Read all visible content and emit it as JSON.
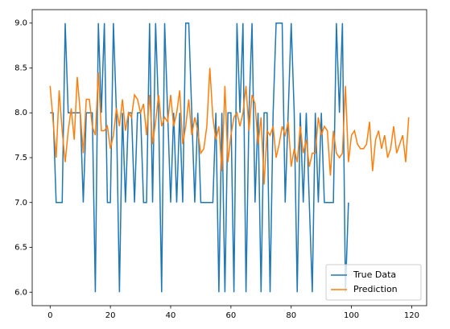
{
  "chart_data": {
    "type": "line",
    "xlim": [
      -5.95,
      124.95
    ],
    "xticks": [
      0,
      20,
      40,
      60,
      80,
      100,
      120
    ],
    "ylim": [
      5.85,
      9.15
    ],
    "yticks": [
      {
        "value": 6,
        "label": "6.0"
      },
      6.5,
      {
        "value": 7,
        "label": "7.0"
      },
      7.5,
      {
        "value": 8,
        "label": "8.0"
      },
      8.5,
      {
        "value": 9,
        "label": "9.0"
      }
    ],
    "legend": "lower right",
    "series": [
      {
        "name": "True Data",
        "color": "#1f77b4",
        "x": [
          0,
          1,
          2,
          3,
          4,
          5,
          6,
          7,
          8,
          9,
          10,
          11,
          12,
          13,
          14,
          15,
          16,
          17,
          18,
          19,
          20,
          21,
          22,
          23,
          24,
          25,
          26,
          27,
          28,
          29,
          30,
          31,
          32,
          33,
          34,
          35,
          36,
          37,
          38,
          39,
          40,
          41,
          42,
          43,
          44,
          45,
          46,
          47,
          48,
          49,
          50,
          51,
          52,
          53,
          54,
          55,
          56,
          57,
          58,
          59,
          60,
          61,
          62,
          63,
          64,
          65,
          66,
          67,
          68,
          69,
          70,
          71,
          72,
          73,
          74,
          75,
          76,
          77,
          78,
          79,
          80,
          81,
          82,
          83,
          84,
          85,
          86,
          87,
          88,
          89,
          90,
          91,
          92,
          93,
          94,
          95,
          96,
          97,
          98,
          99
        ],
        "values": [
          8,
          8,
          7,
          7,
          7,
          9,
          8,
          8,
          8,
          8,
          8,
          7,
          8,
          8,
          8,
          6,
          9,
          8,
          9,
          7,
          7,
          9,
          8,
          6,
          8,
          7,
          8,
          8,
          7,
          8,
          8,
          7,
          7,
          9,
          7,
          9,
          8,
          6,
          9,
          8,
          7,
          8,
          7,
          8,
          7,
          9,
          9,
          8,
          7,
          8,
          7,
          7,
          7,
          7,
          7,
          8,
          6,
          8,
          6,
          8,
          8,
          6,
          9,
          8,
          9,
          6,
          8,
          9,
          7,
          8,
          6,
          8,
          8,
          6,
          8,
          9,
          9,
          9,
          7,
          8,
          9,
          8,
          6,
          8,
          7,
          8,
          7,
          6,
          8,
          7,
          8,
          7,
          7,
          7,
          7,
          9,
          8,
          9,
          6,
          7
        ]
      },
      {
        "name": "Prediction",
        "color": "#ff7f0e",
        "x": [
          0,
          1,
          2,
          3,
          4,
          5,
          6,
          7,
          8,
          9,
          10,
          11,
          12,
          13,
          14,
          15,
          16,
          17,
          18,
          19,
          20,
          21,
          22,
          23,
          24,
          25,
          26,
          27,
          28,
          29,
          30,
          31,
          32,
          33,
          34,
          35,
          36,
          37,
          38,
          39,
          40,
          41,
          42,
          43,
          44,
          45,
          46,
          47,
          48,
          49,
          50,
          51,
          52,
          53,
          54,
          55,
          56,
          57,
          58,
          59,
          60,
          61,
          62,
          63,
          64,
          65,
          66,
          67,
          68,
          69,
          70,
          71,
          72,
          73,
          74,
          75,
          76,
          77,
          78,
          79,
          80,
          81,
          82,
          83,
          84,
          85,
          86,
          87,
          88,
          89,
          90,
          91,
          92,
          93,
          94,
          95,
          96,
          97,
          98,
          99,
          100,
          101,
          102,
          103,
          104,
          105,
          106,
          107,
          108,
          109,
          110,
          111,
          112,
          113,
          114,
          115,
          116,
          117,
          118,
          119
        ],
        "values": [
          8.3,
          7.9,
          7.5,
          8.25,
          7.8,
          7.45,
          7.8,
          8.05,
          7.7,
          8.4,
          8.0,
          7.55,
          8.15,
          8.15,
          7.85,
          7.75,
          8.45,
          7.8,
          7.8,
          7.85,
          7.6,
          7.75,
          8.05,
          7.85,
          8.15,
          7.8,
          8.0,
          7.95,
          8.2,
          8.15,
          8.0,
          8.1,
          7.75,
          8.2,
          7.65,
          7.9,
          8.2,
          7.85,
          7.95,
          7.9,
          8.2,
          7.85,
          8.0,
          8.25,
          7.65,
          7.85,
          8.15,
          7.75,
          7.95,
          7.8,
          7.55,
          7.6,
          7.85,
          8.5,
          7.95,
          7.7,
          7.85,
          7.35,
          8.3,
          7.45,
          7.75,
          7.95,
          8.0,
          7.85,
          8.0,
          8.3,
          7.8,
          8.2,
          8.1,
          7.65,
          7.95,
          7.2,
          7.8,
          7.75,
          7.85,
          7.5,
          7.65,
          7.85,
          7.75,
          7.9,
          7.4,
          7.6,
          7.45,
          7.85,
          7.55,
          7.7,
          7.4,
          7.55,
          7.55,
          7.95,
          7.75,
          7.85,
          7.8,
          7.3,
          7.8,
          7.55,
          7.5,
          7.55,
          8.3,
          7.45,
          7.75,
          7.8,
          7.65,
          7.6,
          7.6,
          7.65,
          7.9,
          7.35,
          7.7,
          7.8,
          7.6,
          7.75,
          7.5,
          7.6,
          7.85,
          7.55,
          7.65,
          7.75,
          7.45,
          7.95
        ]
      }
    ]
  }
}
